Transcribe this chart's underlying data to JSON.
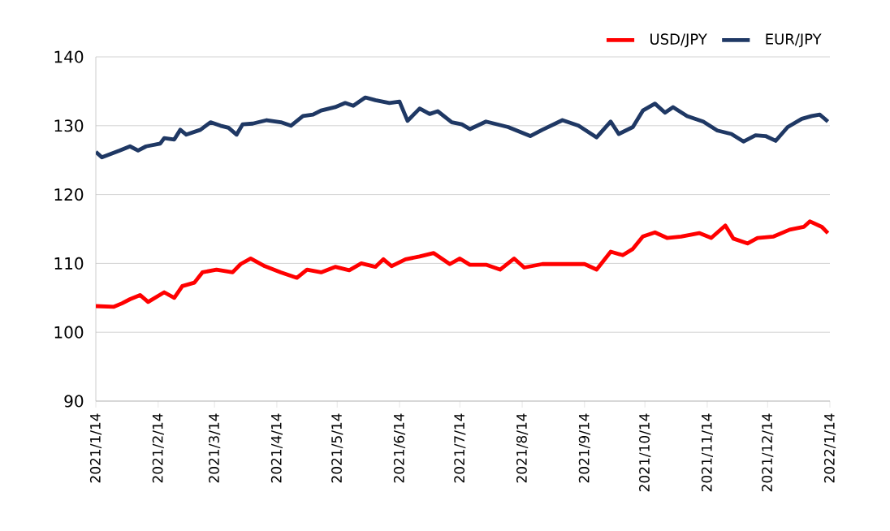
{
  "chart_data": {
    "type": "line",
    "series": [
      {
        "name": "USD/JPY",
        "color": "#ff0000",
        "x": [
          "2021-01-14",
          "2021-01-23",
          "2021-01-27",
          "2021-01-31",
          "2021-02-05",
          "2021-02-09",
          "2021-02-17",
          "2021-02-22",
          "2021-02-26",
          "2021-03-04",
          "2021-03-08",
          "2021-03-15",
          "2021-03-23",
          "2021-03-27",
          "2021-04-01",
          "2021-04-08",
          "2021-04-16",
          "2021-04-24",
          "2021-04-29",
          "2021-05-06",
          "2021-05-13",
          "2021-05-20",
          "2021-05-26",
          "2021-06-02",
          "2021-06-06",
          "2021-06-10",
          "2021-06-17",
          "2021-06-24",
          "2021-07-01",
          "2021-07-09",
          "2021-07-14",
          "2021-07-19",
          "2021-07-27",
          "2021-08-03",
          "2021-08-10",
          "2021-08-15",
          "2021-08-24",
          "2021-09-06",
          "2021-09-14",
          "2021-09-20",
          "2021-09-27",
          "2021-10-03",
          "2021-10-08",
          "2021-10-13",
          "2021-10-19",
          "2021-10-25",
          "2021-11-01",
          "2021-11-10",
          "2021-11-16",
          "2021-11-23",
          "2021-11-27",
          "2021-12-04",
          "2021-12-09",
          "2021-12-17",
          "2021-12-25",
          "2022-01-01",
          "2022-01-04",
          "2022-01-10",
          "2022-01-13"
        ],
        "values": [
          103.8,
          103.7,
          104.2,
          104.8,
          105.4,
          104.4,
          105.8,
          105.0,
          106.7,
          107.2,
          108.7,
          109.1,
          108.7,
          109.9,
          110.7,
          109.6,
          108.7,
          107.9,
          109.1,
          108.7,
          109.5,
          109.0,
          110.0,
          109.5,
          110.6,
          109.6,
          110.6,
          111.0,
          111.5,
          109.9,
          110.7,
          109.8,
          109.8,
          109.1,
          110.7,
          109.4,
          109.9,
          109.9,
          109.9,
          109.1,
          111.7,
          111.2,
          112.1,
          113.9,
          114.5,
          113.7,
          113.9,
          114.4,
          113.7,
          115.5,
          113.6,
          112.9,
          113.7,
          113.9,
          114.9,
          115.3,
          116.1,
          115.3,
          114.4
        ]
      },
      {
        "name": "EUR/JPY",
        "color": "#1f3864",
        "x": [
          "2021-01-14",
          "2021-01-17",
          "2021-01-26",
          "2021-01-31",
          "2021-02-04",
          "2021-02-08",
          "2021-02-15",
          "2021-02-17",
          "2021-02-22",
          "2021-02-25",
          "2021-02-28",
          "2021-03-07",
          "2021-03-12",
          "2021-03-17",
          "2021-03-21",
          "2021-03-25",
          "2021-03-28",
          "2021-04-02",
          "2021-04-09",
          "2021-04-16",
          "2021-04-21",
          "2021-04-27",
          "2021-05-02",
          "2021-05-06",
          "2021-05-13",
          "2021-05-18",
          "2021-05-22",
          "2021-05-28",
          "2021-06-02",
          "2021-06-09",
          "2021-06-14",
          "2021-06-18",
          "2021-06-24",
          "2021-06-29",
          "2021-07-03",
          "2021-07-10",
          "2021-07-15",
          "2021-07-19",
          "2021-07-27",
          "2021-08-07",
          "2021-08-18",
          "2021-08-24",
          "2021-09-03",
          "2021-09-11",
          "2021-09-20",
          "2021-09-27",
          "2021-10-01",
          "2021-10-08",
          "2021-10-13",
          "2021-10-19",
          "2021-10-24",
          "2021-10-28",
          "2021-11-04",
          "2021-11-12",
          "2021-11-19",
          "2021-11-26",
          "2021-12-02",
          "2021-12-08",
          "2021-12-13",
          "2021-12-18",
          "2021-12-24",
          "2021-12-31",
          "2022-01-05",
          "2022-01-09",
          "2022-01-13"
        ],
        "values": [
          126.2,
          125.4,
          126.4,
          127.0,
          126.4,
          127.0,
          127.4,
          128.2,
          128.0,
          129.4,
          128.7,
          129.4,
          130.5,
          130.0,
          129.7,
          128.7,
          130.2,
          130.3,
          130.8,
          130.5,
          130.0,
          131.4,
          131.6,
          132.2,
          132.7,
          133.3,
          132.9,
          134.1,
          133.7,
          133.3,
          133.5,
          130.7,
          132.5,
          131.7,
          132.1,
          130.5,
          130.2,
          129.5,
          130.6,
          129.8,
          128.5,
          129.4,
          130.8,
          130.0,
          128.3,
          130.6,
          128.8,
          129.8,
          132.2,
          133.2,
          131.9,
          132.7,
          131.4,
          130.6,
          129.3,
          128.8,
          127.7,
          128.6,
          128.5,
          127.8,
          129.8,
          131.0,
          131.4,
          131.6,
          130.6
        ]
      }
    ],
    "xlim": [
      "2021-01-14",
      "2022-01-14"
    ],
    "xticks": [
      {
        "value": "2021-01-14",
        "label": "2021/1/14"
      },
      {
        "value": "2021-02-14",
        "label": "2021/2/14"
      },
      {
        "value": "2021-03-14",
        "label": "2021/3/14"
      },
      {
        "value": "2021-04-14",
        "label": "2021/4/14"
      },
      {
        "value": "2021-05-14",
        "label": "2021/5/14"
      },
      {
        "value": "2021-06-14",
        "label": "2021/6/14"
      },
      {
        "value": "2021-07-14",
        "label": "2021/7/14"
      },
      {
        "value": "2021-08-14",
        "label": "2021/8/14"
      },
      {
        "value": "2021-09-14",
        "label": "2021/9/14"
      },
      {
        "value": "2021-10-14",
        "label": "2021/10/14"
      },
      {
        "value": "2021-11-14",
        "label": "2021/11/14"
      },
      {
        "value": "2021-12-14",
        "label": "2021/12/14"
      },
      {
        "value": "2022-01-14",
        "label": "2022/1/14"
      }
    ],
    "ylim": [
      90,
      140
    ],
    "yticks": [
      90,
      100,
      110,
      120,
      130,
      140
    ],
    "grid": "y",
    "legend": "top right",
    "marker": "none",
    "line_style": "solid"
  }
}
